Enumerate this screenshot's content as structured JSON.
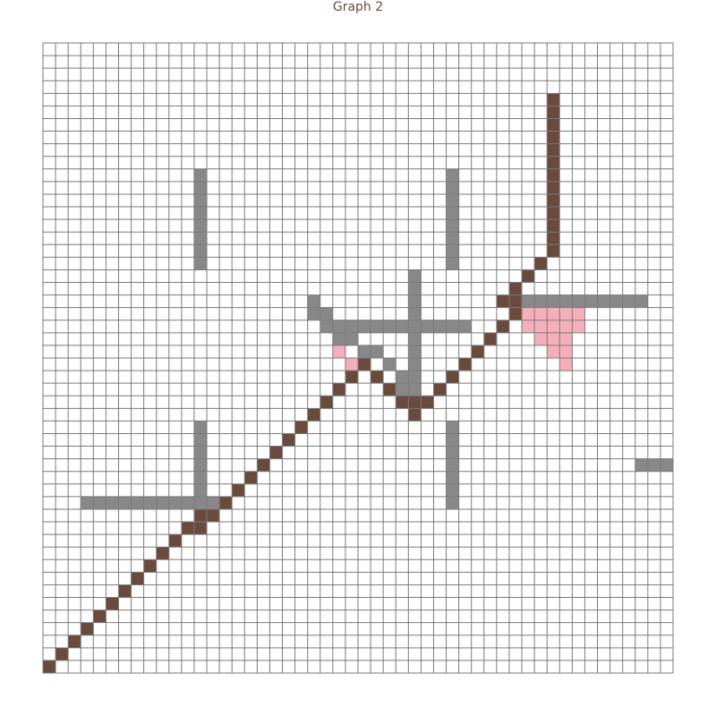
{
  "title": "Graph 2",
  "grid": {
    "cols": 50,
    "rows": 50
  },
  "colors": {
    "background": "#ffffff",
    "grid_line": "#7a7a7a",
    "wall": "#888888",
    "path": "#6b4a3e",
    "highlight": "#f7aebb",
    "title": "#6b4a3e"
  },
  "cells": {
    "walls": [
      [
        12,
        10
      ],
      [
        12,
        11
      ],
      [
        12,
        12
      ],
      [
        12,
        13
      ],
      [
        12,
        14
      ],
      [
        12,
        15
      ],
      [
        12,
        16
      ],
      [
        12,
        17
      ],
      [
        32,
        10
      ],
      [
        32,
        11
      ],
      [
        32,
        12
      ],
      [
        32,
        13
      ],
      [
        32,
        14
      ],
      [
        32,
        15
      ],
      [
        32,
        16
      ],
      [
        32,
        17
      ],
      [
        29,
        18
      ],
      [
        29,
        19
      ],
      [
        29,
        20
      ],
      [
        29,
        21
      ],
      [
        29,
        22
      ],
      [
        29,
        23
      ],
      [
        29,
        24
      ],
      [
        29,
        25
      ],
      [
        29,
        26
      ],
      [
        29,
        27
      ],
      [
        29,
        28
      ],
      [
        21,
        20
      ],
      [
        21,
        21
      ],
      [
        22,
        21
      ],
      [
        22,
        22
      ],
      [
        23,
        22
      ],
      [
        23,
        23
      ],
      [
        24,
        23
      ],
      [
        25,
        24
      ],
      [
        26,
        24
      ],
      [
        27,
        25
      ],
      [
        28,
        26
      ],
      [
        28,
        27
      ],
      [
        24,
        22
      ],
      [
        25,
        22
      ],
      [
        26,
        22
      ],
      [
        27,
        22
      ],
      [
        28,
        22
      ],
      [
        30,
        22
      ],
      [
        31,
        22
      ],
      [
        32,
        22
      ],
      [
        33,
        22
      ],
      [
        37,
        20
      ],
      [
        38,
        20
      ],
      [
        39,
        20
      ],
      [
        40,
        20
      ],
      [
        41,
        20
      ],
      [
        42,
        20
      ],
      [
        43,
        20
      ],
      [
        44,
        20
      ],
      [
        45,
        20
      ],
      [
        46,
        20
      ],
      [
        47,
        20
      ],
      [
        12,
        30
      ],
      [
        12,
        31
      ],
      [
        12,
        32
      ],
      [
        12,
        33
      ],
      [
        12,
        34
      ],
      [
        12,
        35
      ],
      [
        12,
        36
      ],
      [
        32,
        30
      ],
      [
        32,
        31
      ],
      [
        32,
        32
      ],
      [
        32,
        33
      ],
      [
        32,
        34
      ],
      [
        32,
        35
      ],
      [
        32,
        36
      ],
      [
        3,
        36
      ],
      [
        4,
        36
      ],
      [
        5,
        36
      ],
      [
        6,
        36
      ],
      [
        7,
        36
      ],
      [
        8,
        36
      ],
      [
        9,
        36
      ],
      [
        10,
        36
      ],
      [
        11,
        36
      ],
      [
        12,
        36
      ],
      [
        13,
        36
      ],
      [
        47,
        33
      ],
      [
        48,
        33
      ],
      [
        49,
        33
      ]
    ],
    "highlights": [
      [
        23,
        24
      ],
      [
        24,
        25
      ],
      [
        38,
        21
      ],
      [
        39,
        21
      ],
      [
        40,
        21
      ],
      [
        41,
        21
      ],
      [
        42,
        21
      ],
      [
        38,
        22
      ],
      [
        39,
        22
      ],
      [
        40,
        22
      ],
      [
        41,
        22
      ],
      [
        42,
        22
      ],
      [
        39,
        23
      ],
      [
        40,
        23
      ],
      [
        41,
        23
      ],
      [
        40,
        24
      ],
      [
        41,
        24
      ],
      [
        41,
        25
      ]
    ],
    "path": [
      [
        0,
        49
      ],
      [
        1,
        48
      ],
      [
        2,
        47
      ],
      [
        3,
        46
      ],
      [
        4,
        45
      ],
      [
        5,
        44
      ],
      [
        6,
        43
      ],
      [
        7,
        42
      ],
      [
        8,
        41
      ],
      [
        9,
        40
      ],
      [
        10,
        39
      ],
      [
        11,
        38
      ],
      [
        12,
        38
      ],
      [
        12,
        37
      ],
      [
        13,
        37
      ],
      [
        14,
        36
      ],
      [
        15,
        35
      ],
      [
        16,
        34
      ],
      [
        17,
        33
      ],
      [
        18,
        32
      ],
      [
        19,
        31
      ],
      [
        20,
        30
      ],
      [
        21,
        29
      ],
      [
        22,
        28
      ],
      [
        23,
        27
      ],
      [
        24,
        26
      ],
      [
        25,
        25
      ],
      [
        26,
        26
      ],
      [
        27,
        27
      ],
      [
        28,
        28
      ],
      [
        29,
        29
      ],
      [
        29,
        28
      ],
      [
        30,
        28
      ],
      [
        31,
        27
      ],
      [
        32,
        26
      ],
      [
        33,
        25
      ],
      [
        34,
        24
      ],
      [
        35,
        23
      ],
      [
        36,
        22
      ],
      [
        37,
        21
      ],
      [
        37,
        20
      ],
      [
        36,
        20
      ],
      [
        37,
        19
      ],
      [
        38,
        18
      ],
      [
        39,
        17
      ],
      [
        40,
        16
      ],
      [
        40,
        15
      ],
      [
        40,
        14
      ],
      [
        40,
        13
      ],
      [
        40,
        12
      ],
      [
        40,
        11
      ],
      [
        40,
        10
      ],
      [
        40,
        9
      ],
      [
        40,
        8
      ],
      [
        40,
        7
      ],
      [
        40,
        6
      ],
      [
        40,
        5
      ],
      [
        40,
        4
      ]
    ]
  }
}
